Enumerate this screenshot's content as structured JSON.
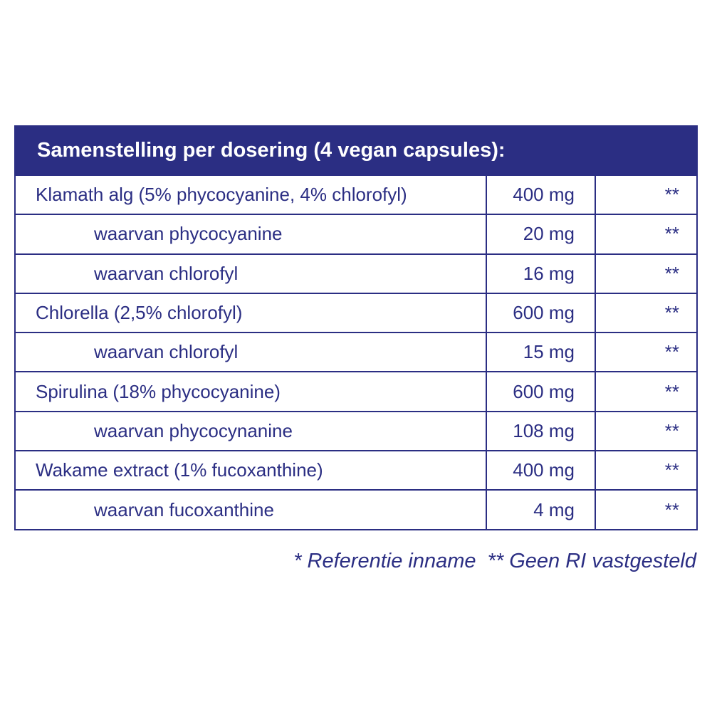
{
  "table": {
    "title": "Samenstelling per dosering (4 vegan capsules):",
    "groups": [
      {
        "name": "Klamath alg (5% phycocyanine, 4% chlorofyl)",
        "amount": "400 mg",
        "ri": "**",
        "sub": [
          {
            "name": "waarvan phycocyanine",
            "amount": "20 mg",
            "ri": "**"
          },
          {
            "name": "waarvan chlorofyl",
            "amount": "16 mg",
            "ri": "**"
          }
        ]
      },
      {
        "name": "Chlorella (2,5% chlorofyl)",
        "amount": "600 mg",
        "ri": "**",
        "sub": [
          {
            "name": "waarvan chlorofyl",
            "amount": "15 mg",
            "ri": "**"
          }
        ]
      },
      {
        "name": "Spirulina (18% phycocyanine)",
        "amount": "600 mg",
        "ri": "**",
        "sub": [
          {
            "name": "waarvan phycocynanine",
            "amount": "108 mg",
            "ri": "**"
          }
        ]
      },
      {
        "name": "Wakame extract (1% fucoxanthine)",
        "amount": "400 mg",
        "ri": "**",
        "sub": [
          {
            "name": "waarvan fucoxanthine",
            "amount": "4 mg",
            "ri": "**"
          }
        ]
      }
    ],
    "footnote": "* Referentie inname  ** Geen RI vastgesteld"
  }
}
